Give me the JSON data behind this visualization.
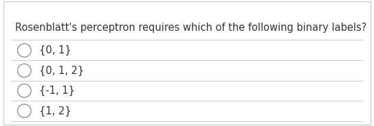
{
  "question": "Rosenblatt's perceptron requires which of the following binary labels?",
  "options": [
    "{0, 1}",
    "{0, 1, 2}",
    "{-1, 1}",
    "{1, 2}"
  ],
  "background_color": "#ffffff",
  "border_color": "#cccccc",
  "text_color": "#333333",
  "line_color": "#cccccc",
  "question_fontsize": 10.5,
  "option_fontsize": 10.5,
  "circle_color": "#888888",
  "fig_width": 5.44,
  "fig_height": 1.84
}
